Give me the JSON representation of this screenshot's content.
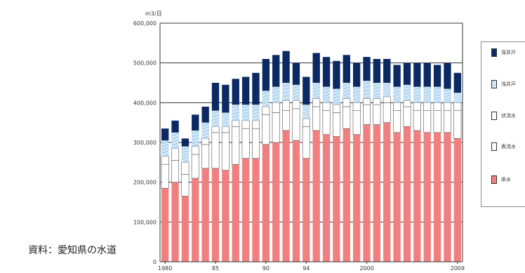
{
  "unit_label": "m3/日",
  "source": "資料：愛知県の水道",
  "colors": {
    "dom": "#f08080",
    "sur": "#ffffff",
    "fuk": "#ffffff",
    "sha": "#b8d8f0",
    "fuka": "#0b2a63",
    "grid": "#333333",
    "axis": "#333333"
  },
  "chart_data": {
    "type": "bar",
    "stacked": true,
    "x": [
      1980,
      1981,
      1982,
      1983,
      1984,
      1985,
      1986,
      1987,
      1988,
      1989,
      1990,
      1991,
      1992,
      1993,
      1994,
      1995,
      1996,
      1997,
      1998,
      1999,
      2000,
      2001,
      2002,
      2003,
      2004,
      2005,
      2006,
      2007,
      2008,
      2009
    ],
    "x_tick_labels": [
      {
        "year": 1980,
        "label": "1980"
      },
      {
        "year": 1985,
        "label": "85"
      },
      {
        "year": 1990,
        "label": "90"
      },
      {
        "year": 1994,
        "label": "94"
      },
      {
        "year": 2000,
        "label": "2000"
      },
      {
        "year": 2009,
        "label": "2009"
      }
    ],
    "ylim": [
      0,
      600000
    ],
    "yticks": [
      0,
      100000,
      200000,
      300000,
      400000,
      500000,
      600000
    ],
    "ytick_labels": [
      "0",
      "100,000",
      "200,000",
      "300,000",
      "400,000",
      "500,000",
      "600,000"
    ],
    "grid": true,
    "legend_position": "right",
    "series": [
      {
        "name": "県水",
        "key": "dom",
        "values": [
          185000,
          200000,
          165000,
          210000,
          235000,
          235000,
          230000,
          245000,
          260000,
          260000,
          295000,
          300000,
          330000,
          305000,
          260000,
          330000,
          320000,
          315000,
          335000,
          320000,
          345000,
          345000,
          350000,
          325000,
          340000,
          330000,
          325000,
          325000,
          325000,
          310000
        ]
      },
      {
        "name": "表流水",
        "key": "sur",
        "values": [
          60000,
          55000,
          55000,
          60000,
          60000,
          90000,
          95000,
          95000,
          75000,
          75000,
          75000,
          75000,
          50000,
          80000,
          80000,
          60000,
          60000,
          60000,
          55000,
          60000,
          50000,
          50000,
          50000,
          55000,
          50000,
          50000,
          55000,
          55000,
          55000,
          70000
        ]
      },
      {
        "name": "伏流水",
        "key": "fuk",
        "values": [
          20000,
          30000,
          30000,
          20000,
          15000,
          15000,
          15000,
          15000,
          20000,
          20000,
          20000,
          25000,
          25000,
          20000,
          20000,
          20000,
          20000,
          20000,
          20000,
          20000,
          15000,
          15000,
          15000,
          20000,
          15000,
          20000,
          20000,
          20000,
          20000,
          20000
        ]
      },
      {
        "name": "浅井戸",
        "key": "sha",
        "values": [
          40000,
          40000,
          40000,
          40000,
          40000,
          40000,
          35000,
          40000,
          40000,
          40000,
          40000,
          40000,
          45000,
          40000,
          35000,
          40000,
          40000,
          40000,
          40000,
          40000,
          45000,
          40000,
          35000,
          40000,
          40000,
          40000,
          40000,
          40000,
          35000,
          25000
        ]
      },
      {
        "name": "深井戸",
        "key": "fuka",
        "values": [
          30000,
          30000,
          20000,
          40000,
          40000,
          70000,
          70000,
          65000,
          70000,
          80000,
          80000,
          80000,
          80000,
          55000,
          70000,
          75000,
          75000,
          70000,
          70000,
          60000,
          60000,
          60000,
          60000,
          55000,
          55000,
          60000,
          60000,
          55000,
          65000,
          50000
        ]
      }
    ]
  }
}
